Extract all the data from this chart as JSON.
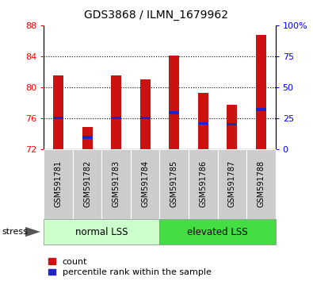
{
  "title": "GDS3868 / ILMN_1679962",
  "samples": [
    "GSM591781",
    "GSM591782",
    "GSM591783",
    "GSM591784",
    "GSM591785",
    "GSM591786",
    "GSM591787",
    "GSM591788"
  ],
  "count_values": [
    81.5,
    74.8,
    81.5,
    81.0,
    84.1,
    79.3,
    77.7,
    86.8
  ],
  "percentile_values": [
    76.0,
    73.5,
    76.0,
    76.0,
    76.7,
    75.3,
    75.2,
    77.1
  ],
  "y_min": 72,
  "y_max": 88,
  "y_ticks": [
    72,
    76,
    80,
    84,
    88
  ],
  "right_y_ticks": [
    0,
    25,
    50,
    75,
    100
  ],
  "right_y_tick_pos": [
    72,
    76,
    80,
    84,
    88
  ],
  "group1_label": "normal LSS",
  "group2_label": "elevated LSS",
  "group1_count": 4,
  "group2_count": 4,
  "bar_color": "#cc1111",
  "percentile_color": "#2222cc",
  "group1_bg": "#ccffcc",
  "group2_bg": "#44dd44",
  "sample_bg": "#cccccc",
  "bar_width": 0.35,
  "baseline": 72,
  "legend_count_label": "count",
  "legend_percentile_label": "percentile rank within the sample",
  "stress_label": "stress",
  "title_fontsize": 10,
  "tick_fontsize": 8,
  "sample_fontsize": 7,
  "group_fontsize": 8.5,
  "legend_fontsize": 8,
  "stress_fontsize": 8
}
